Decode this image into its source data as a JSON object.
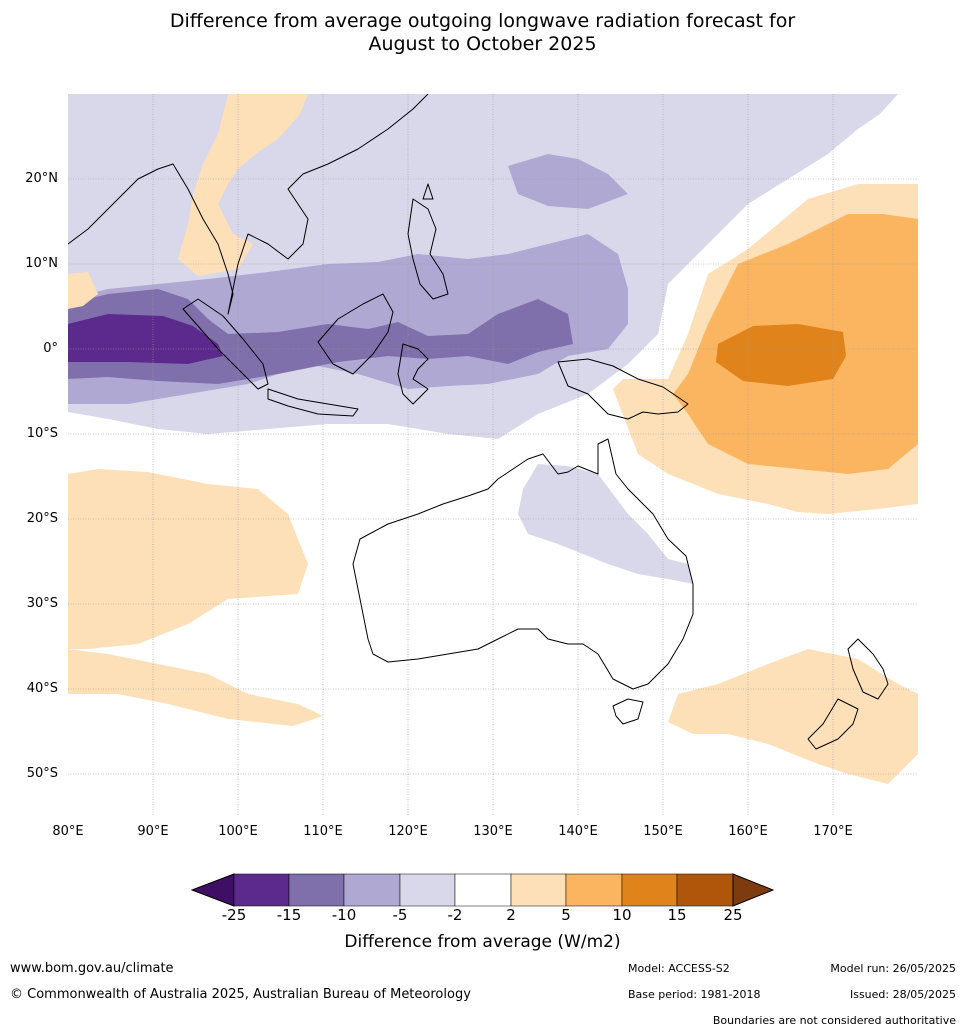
{
  "title_line1": "Difference from average outgoing longwave radiation forecast for",
  "title_line2": "August to October 2025",
  "colors": {
    "n25": "#3f0f66",
    "n20": "#5b2a8c",
    "n15": "#7f6fab",
    "n10": "#afa8d3",
    "n5": "#d9d8ea",
    "neutral": "#ffffff",
    "p2": "#fde0b8",
    "p5": "#fbb560",
    "p10": "#e0831a",
    "p15": "#b0560a",
    "p25": "#7d3b0e",
    "land": "#000000",
    "grid": "#9a9a9a"
  },
  "lat_labels": [
    "20°N",
    "10°N",
    "0°",
    "10°S",
    "20°S",
    "30°S",
    "40°S",
    "50°S"
  ],
  "lon_labels": [
    "80°E",
    "90°E",
    "100°E",
    "110°E",
    "120°E",
    "130°E",
    "140°E",
    "150°E",
    "160°E",
    "170°E"
  ],
  "colorbar": {
    "ticks": [
      "-25",
      "-15",
      "-10",
      "-5",
      "-2",
      "2",
      "5",
      "10",
      "15",
      "25"
    ],
    "title": "Difference from average (W/m2)"
  },
  "footer": {
    "url": "www.bom.gov.au/climate",
    "copyright": "© Commonwealth of Australia 2025, Australian Bureau of Meteorology",
    "model": "Model: ACCESS-S2",
    "base_period": "Base period: 1981-2018",
    "model_run": "Model run: 26/05/2025",
    "issued": "Issued: 28/05/2025",
    "disclaimer": "Boundaries are not considered authoritative"
  }
}
